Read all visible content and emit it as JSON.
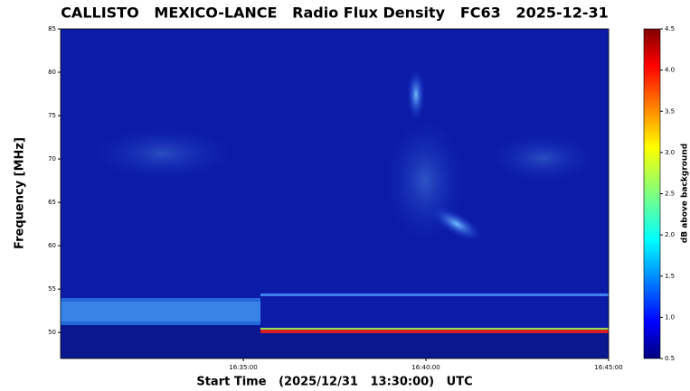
{
  "chart_data": {
    "type": "spectrogram",
    "title": "CALLISTO   MEXICO-LANCE   Radio Flux Density   FC63   2025-12-31",
    "x_label": "Start Time   (2025/12/31   13:30:00)   UTC",
    "y_label": "Frequency [MHz]",
    "xlim": [
      990,
      1005
    ],
    "xticks": [
      {
        "value": 995,
        "label": "16:35:00"
      },
      {
        "value": 1000,
        "label": "16:40:00"
      },
      {
        "value": 1005,
        "label": "16:45:00"
      }
    ],
    "ylim": [
      47,
      85
    ],
    "yticks": [
      50,
      55,
      60,
      65,
      70,
      75,
      80,
      85
    ],
    "colormap": "jet",
    "colorbar": {
      "label": "dB above background",
      "lim": [
        0.5,
        4.5
      ],
      "ticks": [
        0.5,
        {
          "value": 1,
          "label": "1.0"
        },
        1.5,
        {
          "value": 2,
          "label": "2.0"
        },
        2.5,
        {
          "value": 3,
          "label": "3.0"
        },
        3.5,
        {
          "value": 4,
          "label": "4.0"
        },
        4.5
      ]
    }
  }
}
